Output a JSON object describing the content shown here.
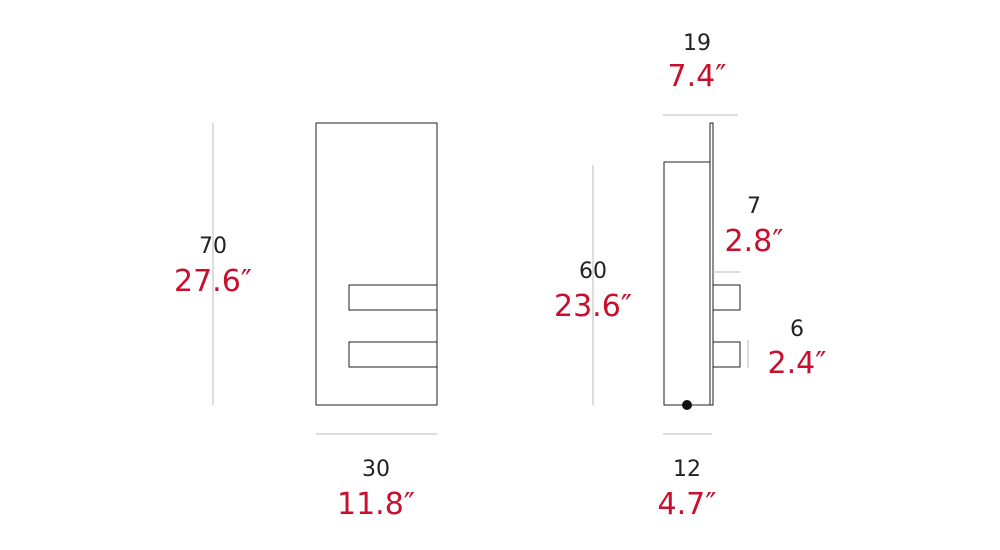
{
  "dimensions": [
    {
      "cm": "70",
      "inches": "27.6″"
    },
    {
      "cm": "30",
      "inches": "11.8″"
    },
    {
      "cm": "19",
      "inches": "7.4″"
    },
    {
      "cm": "60",
      "inches": "23.6″"
    },
    {
      "cm": "7",
      "inches": "2.8″"
    },
    {
      "cm": "6",
      "inches": "2.4″"
    },
    {
      "cm": "12",
      "inches": "4.7″"
    }
  ]
}
